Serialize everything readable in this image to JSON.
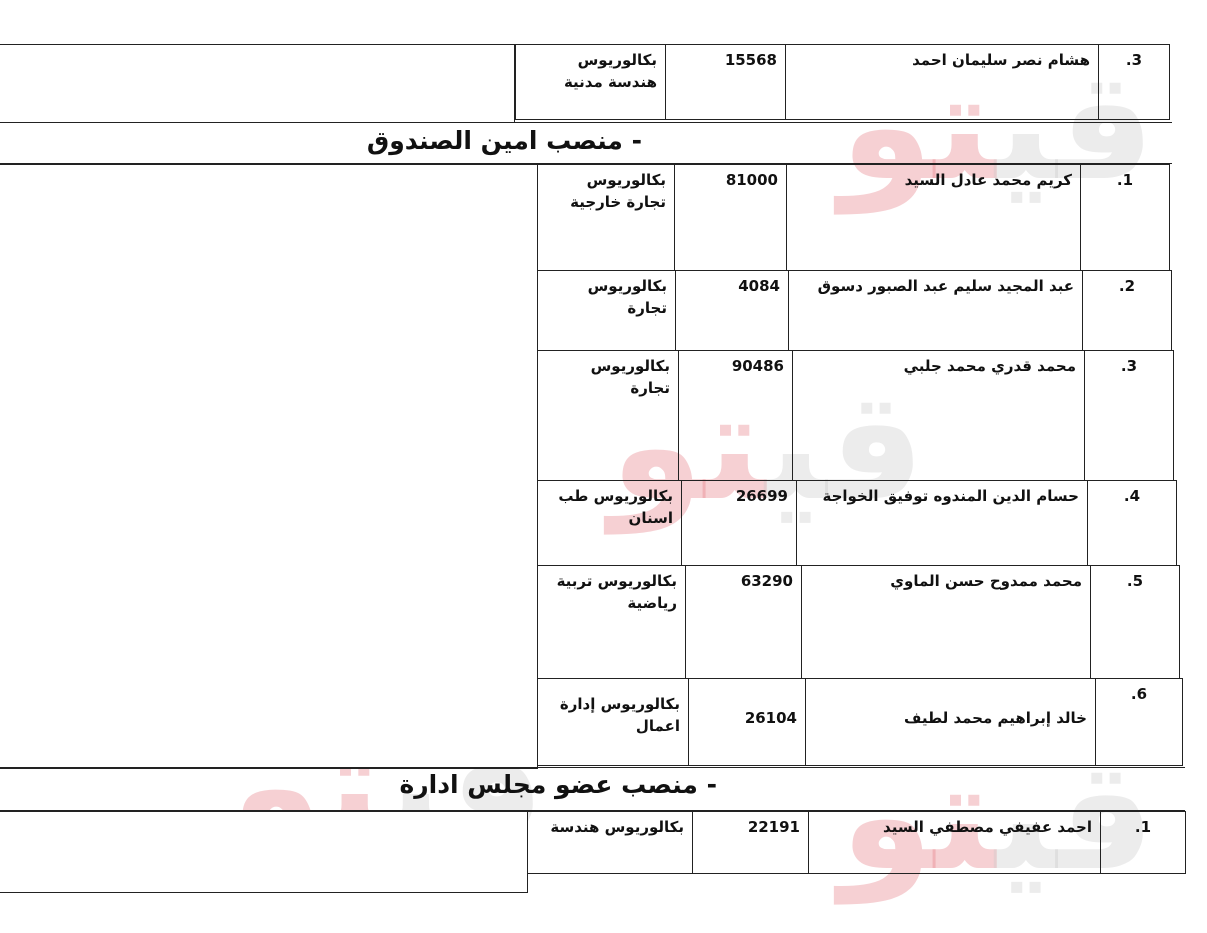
{
  "section_prev": {
    "rows": [
      {
        "no": "3.",
        "name": "هشام نصر سليمان احمد",
        "id": "15568",
        "degree": "بكالوريوس هندسة مدنية"
      }
    ]
  },
  "section_treasurer": {
    "title": "-   منصب امين الصندوق",
    "rows": [
      {
        "no": "1.",
        "name": "كريم محمد عادل السيد",
        "id": "81000",
        "degree": "بكالوريوس تجارة خارجية"
      },
      {
        "no": "2.",
        "name": "عبد المجيد سليم عبد الصبور دسوق",
        "id": "4084",
        "degree": "بكالوريوس تجارة"
      },
      {
        "no": "3.",
        "name": "محمد قدري محمد جلبي",
        "id": "90486",
        "degree": "بكالوريوس تجارة"
      },
      {
        "no": "4.",
        "name": "حسام الدين المندوه توفيق الخواجة",
        "id": "26699",
        "degree": "بكالوريوس طب اسنان"
      },
      {
        "no": "5.",
        "name": "محمد ممدوح حسن الماوي",
        "id": "63290",
        "degree": "بكالوريوس تربية رياضية"
      },
      {
        "no": "6.",
        "name": "خالد إبراهيم محمد لطيف",
        "id": "26104",
        "degree": "بكالوريوس إدارة اعمال"
      }
    ]
  },
  "section_board": {
    "title": "-   منصب عضو مجلس ادارة",
    "rows": [
      {
        "no": "1.",
        "name": "احمد عفيفي مصطفي السيد",
        "id": "22191",
        "degree": "بكالوريوس هندسة"
      }
    ]
  },
  "watermark": "قيتو"
}
